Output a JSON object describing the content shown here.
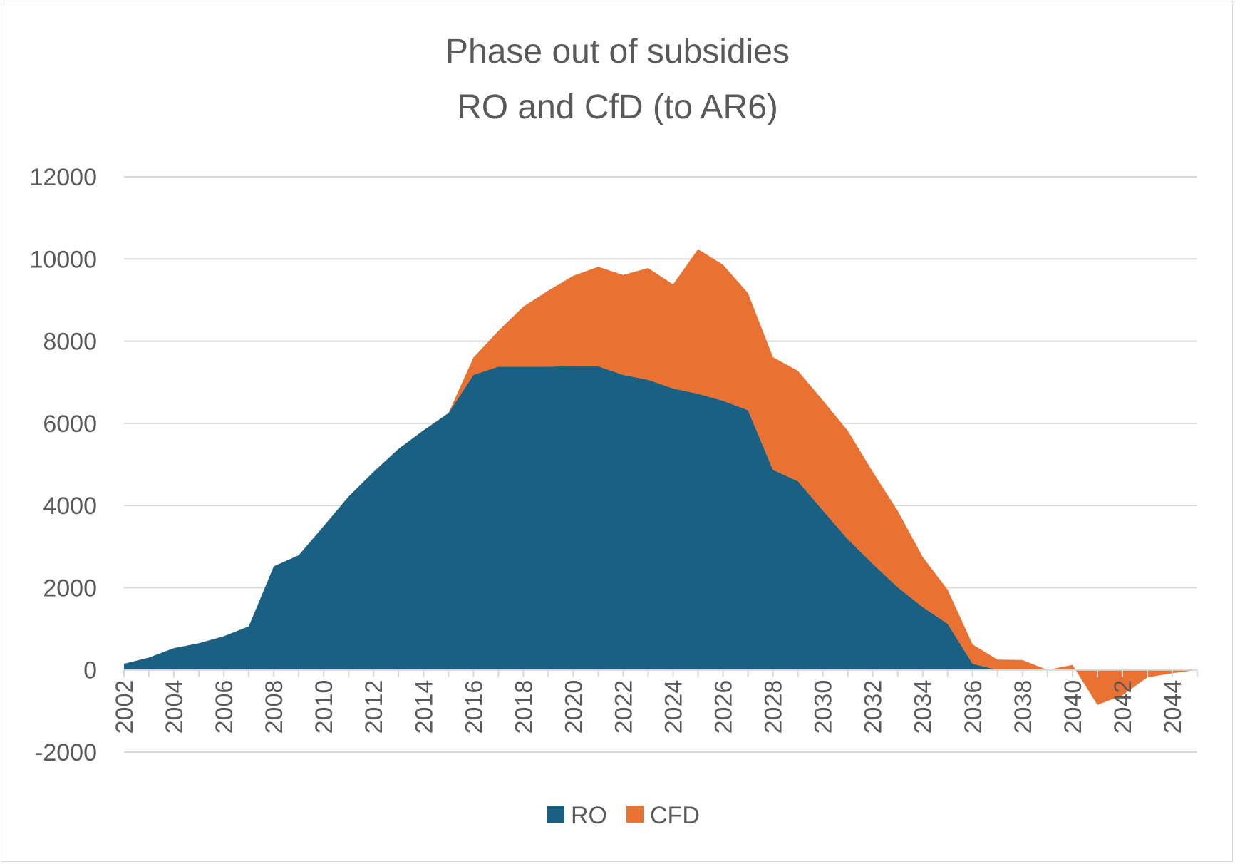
{
  "chart_data": {
    "type": "area",
    "stacked": true,
    "title_line1": "Phase out of subsidies",
    "title_line2": "RO and CfD (to AR6)",
    "xlabel": "",
    "ylabel": "",
    "ylim": [
      -2000,
      12000
    ],
    "y_ticks": [
      12000,
      10000,
      8000,
      6000,
      4000,
      2000,
      0,
      -2000
    ],
    "x_tick_labels": [
      "2002",
      "2004",
      "2006",
      "2008",
      "2010",
      "2012",
      "2014",
      "2016",
      "2018",
      "2020",
      "2022",
      "2024",
      "2026",
      "2028",
      "2030",
      "2032",
      "2034",
      "2036",
      "2038",
      "2040",
      "2042",
      "2044"
    ],
    "x": [
      2002,
      2003,
      2004,
      2005,
      2006,
      2007,
      2008,
      2009,
      2010,
      2011,
      2012,
      2013,
      2014,
      2015,
      2016,
      2017,
      2018,
      2019,
      2020,
      2021,
      2022,
      2023,
      2024,
      2025,
      2026,
      2027,
      2028,
      2029,
      2030,
      2031,
      2032,
      2033,
      2034,
      2035,
      2036,
      2037,
      2038,
      2039,
      2040,
      2041,
      2042,
      2043,
      2044,
      2045
    ],
    "series": [
      {
        "name": "RO",
        "color": "#1a6083",
        "values": [
          150,
          300,
          530,
          650,
          820,
          1060,
          2520,
          2790,
          3500,
          4220,
          4820,
          5380,
          5830,
          6250,
          7180,
          7380,
          7380,
          7380,
          7390,
          7390,
          7180,
          7060,
          6850,
          6720,
          6550,
          6320,
          4870,
          4590,
          3880,
          3180,
          2580,
          2010,
          1530,
          1120,
          150,
          0,
          0,
          0,
          0,
          0,
          0,
          0,
          0,
          0
        ]
      },
      {
        "name": "CFD",
        "color": "#e97132",
        "values": [
          0,
          0,
          0,
          0,
          0,
          0,
          0,
          0,
          0,
          0,
          0,
          0,
          0,
          0,
          420,
          870,
          1460,
          1850,
          2200,
          2420,
          2430,
          2720,
          2530,
          3520,
          3310,
          2850,
          2740,
          2690,
          2680,
          2640,
          2240,
          1860,
          1220,
          830,
          470,
          250,
          240,
          0,
          120,
          -850,
          -620,
          -180,
          -80,
          0
        ]
      }
    ],
    "legend_position": "bottom",
    "grid": true
  }
}
